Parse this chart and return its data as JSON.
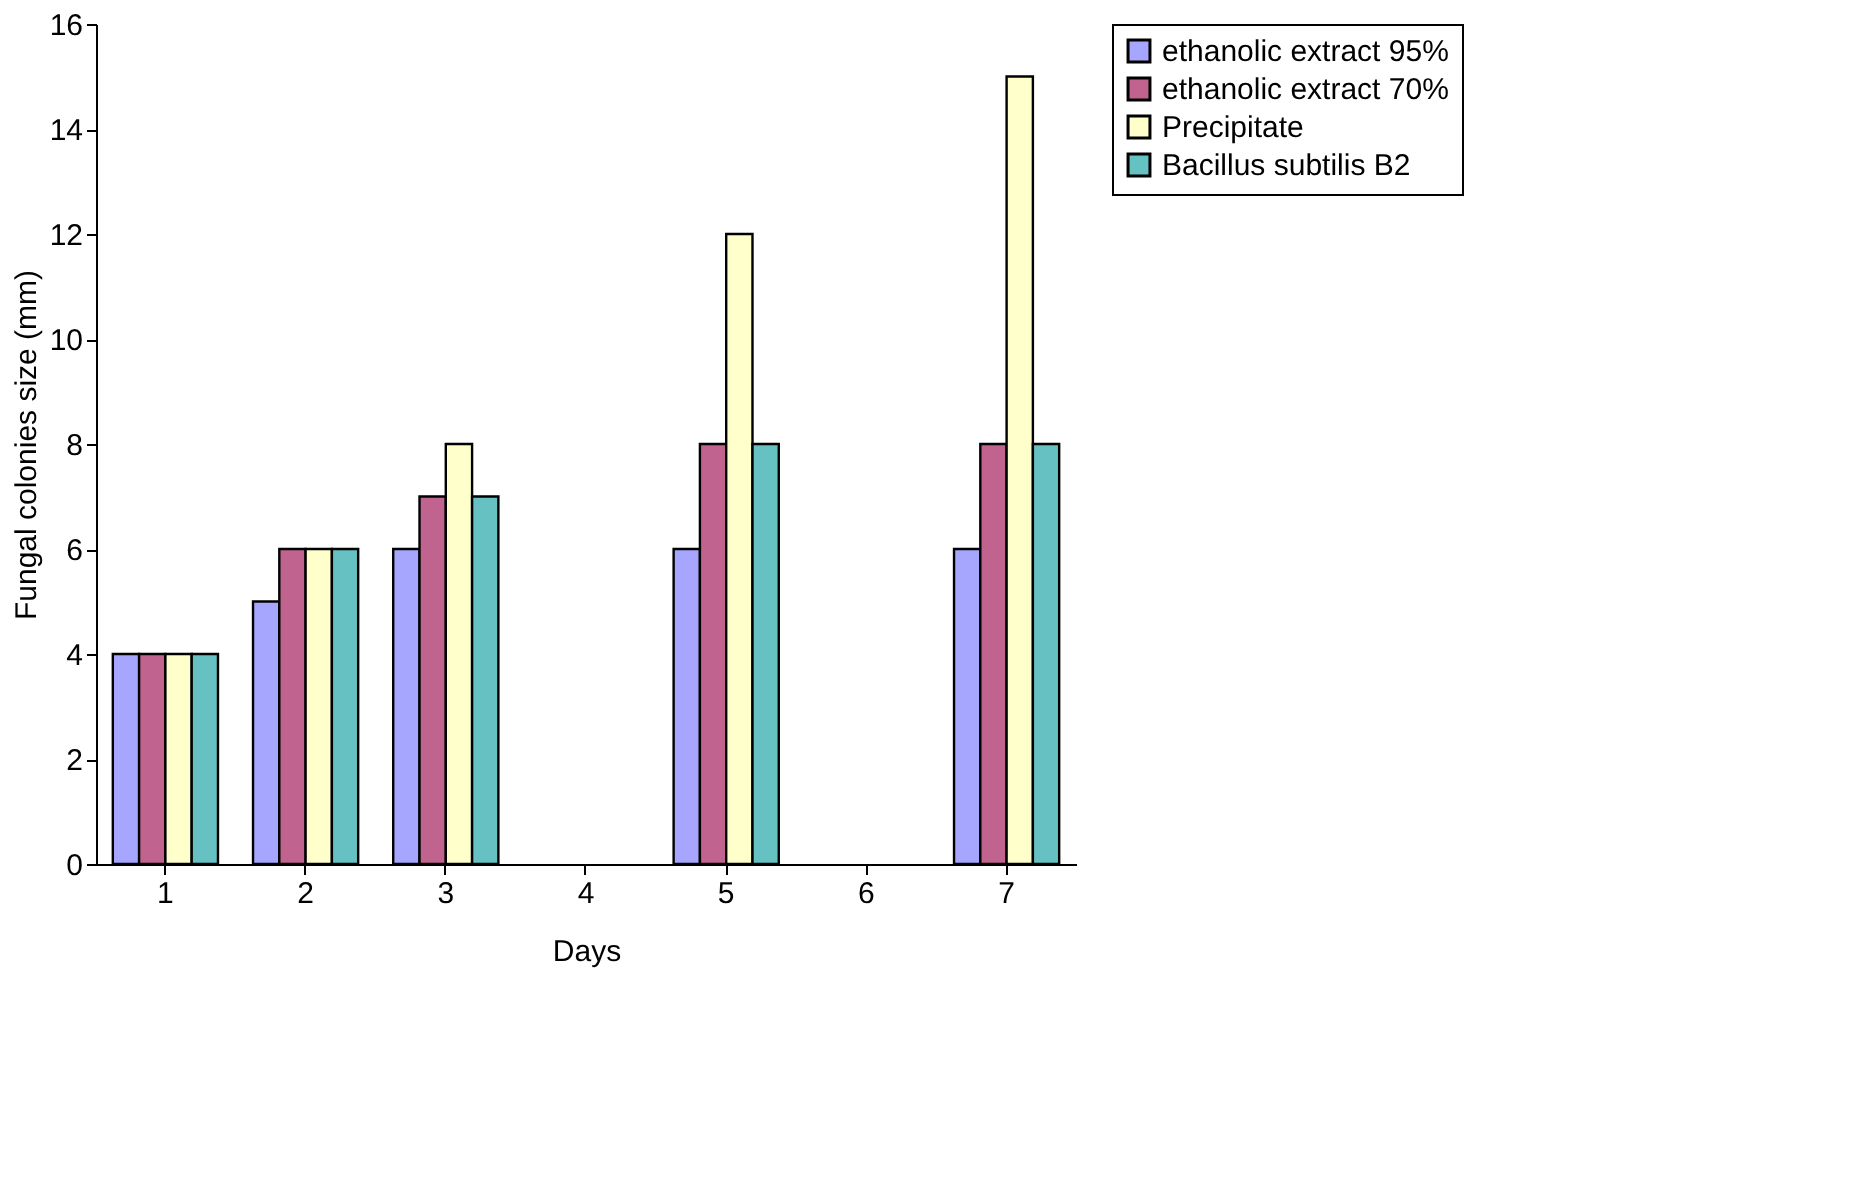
{
  "chart_data": {
    "type": "bar",
    "xlabel": "Days",
    "ylabel": "Fungal colonies size (mm)",
    "categories": [
      "1",
      "2",
      "3",
      "4",
      "5",
      "6",
      "7"
    ],
    "series": [
      {
        "name": "ethanolic extract 95%",
        "color": "#a6a6ff",
        "values": [
          4,
          5,
          6,
          null,
          6,
          null,
          6
        ]
      },
      {
        "name": "ethanolic extract 70%",
        "color": "#c0648f",
        "values": [
          4,
          6,
          7,
          null,
          8,
          null,
          8
        ]
      },
      {
        "name": "Precipitate",
        "color": "#ffffcc",
        "values": [
          4,
          6,
          8,
          null,
          12,
          null,
          15
        ]
      },
      {
        "name": "Bacillus subtilis B2",
        "color": "#66c2c2",
        "values": [
          4,
          6,
          7,
          null,
          8,
          null,
          8
        ]
      }
    ],
    "ylim": [
      0,
      16
    ],
    "yticks": [
      0,
      2,
      4,
      6,
      8,
      10,
      12,
      14,
      16
    ],
    "grid": false,
    "legend": "right"
  }
}
